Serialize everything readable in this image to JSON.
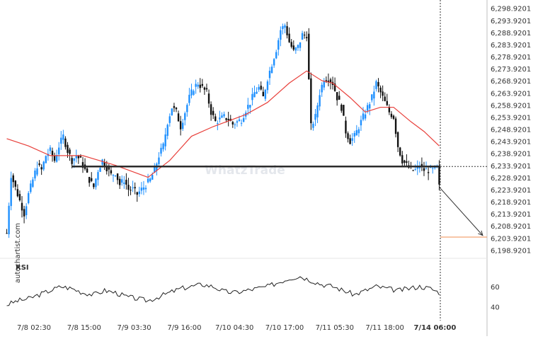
{
  "source_label": "autochartist.com",
  "watermark": "WhatzTrade",
  "chart_data": {
    "type": "candlestick",
    "title": "",
    "price_axis": {
      "ticks": [
        "6,298.9201",
        "6,293.9201",
        "6,288.9201",
        "6,283.9201",
        "6,278.9201",
        "6,273.9201",
        "6,268.9201",
        "6,263.9201",
        "6,258.9201",
        "6,253.9201",
        "6,248.9201",
        "6,243.9201",
        "6,238.9201",
        "6,233.9201",
        "6,228.9201",
        "6,223.9201",
        "6,218.9201",
        "6,213.9201",
        "6,208.9201",
        "6,203.9201",
        "6,198.9201"
      ],
      "ylim": [
        6196.4,
        6300.6
      ]
    },
    "time_axis": {
      "ticks": [
        "7/8 02:30",
        "7/8 15:00",
        "7/9 03:30",
        "7/9 16:00",
        "7/10 04:30",
        "7/10 17:00",
        "7/11 05:30",
        "7/11 18:00",
        "7/14 06:00"
      ],
      "highlight_tick": "7/14 06:00",
      "n_bars": 200
    },
    "support_level": 6233.5,
    "target_level": 6204.3,
    "price_series": [
      [
        0,
        6206
      ],
      [
        2,
        6230
      ],
      [
        5,
        6222
      ],
      [
        8,
        6214
      ],
      [
        10,
        6222
      ],
      [
        12,
        6228
      ],
      [
        14,
        6234
      ],
      [
        16,
        6232
      ],
      [
        18,
        6238
      ],
      [
        20,
        6240
      ],
      [
        22,
        6236
      ],
      [
        24,
        6242
      ],
      [
        26,
        6246
      ],
      [
        28,
        6240
      ],
      [
        30,
        6236
      ],
      [
        32,
        6238
      ],
      [
        34,
        6236
      ],
      [
        36,
        6232
      ],
      [
        38,
        6228
      ],
      [
        40,
        6225
      ],
      [
        42,
        6232
      ],
      [
        44,
        6236
      ],
      [
        46,
        6233
      ],
      [
        48,
        6230
      ],
      [
        50,
        6231
      ],
      [
        52,
        6226
      ],
      [
        54,
        6228
      ],
      [
        56,
        6224
      ],
      [
        58,
        6224
      ],
      [
        60,
        6222
      ],
      [
        62,
        6224
      ],
      [
        64,
        6226
      ],
      [
        66,
        6228
      ],
      [
        68,
        6232
      ],
      [
        70,
        6238
      ],
      [
        72,
        6242
      ],
      [
        74,
        6252
      ],
      [
        76,
        6258
      ],
      [
        78,
        6256
      ],
      [
        80,
        6250
      ],
      [
        82,
        6256
      ],
      [
        84,
        6262
      ],
      [
        86,
        6266
      ],
      [
        88,
        6268
      ],
      [
        90,
        6266
      ],
      [
        92,
        6264
      ],
      [
        94,
        6256
      ],
      [
        96,
        6252
      ],
      [
        98,
        6253
      ],
      [
        100,
        6254
      ],
      [
        102,
        6253
      ],
      [
        104,
        6251
      ],
      [
        106,
        6252
      ],
      [
        108,
        6253
      ],
      [
        110,
        6257
      ],
      [
        112,
        6260
      ],
      [
        114,
        6264
      ],
      [
        116,
        6266
      ],
      [
        118,
        6262
      ],
      [
        120,
        6270
      ],
      [
        122,
        6276
      ],
      [
        124,
        6282
      ],
      [
        126,
        6290
      ],
      [
        128,
        6292
      ],
      [
        130,
        6285
      ],
      [
        132,
        6281
      ],
      [
        134,
        6283
      ],
      [
        136,
        6288
      ],
      [
        138,
        6288
      ],
      [
        140,
        6250
      ],
      [
        142,
        6254
      ],
      [
        144,
        6264
      ],
      [
        146,
        6270
      ],
      [
        148,
        6270
      ],
      [
        150,
        6268
      ],
      [
        152,
        6262
      ],
      [
        154,
        6258
      ],
      [
        156,
        6248
      ],
      [
        158,
        6244
      ],
      [
        160,
        6246
      ],
      [
        162,
        6250
      ],
      [
        164,
        6254
      ],
      [
        166,
        6258
      ],
      [
        168,
        6262
      ],
      [
        170,
        6268
      ],
      [
        172,
        6264
      ],
      [
        174,
        6260
      ],
      [
        176,
        6256
      ],
      [
        178,
        6254
      ],
      [
        180,
        6242
      ],
      [
        182,
        6236
      ],
      [
        184,
        6234
      ],
      [
        186,
        6232
      ],
      [
        188,
        6232
      ],
      [
        190,
        6234
      ],
      [
        192,
        6232
      ],
      [
        194,
        6232
      ],
      [
        196,
        6232
      ],
      [
        198,
        6233
      ],
      [
        199,
        6225
      ]
    ],
    "moving_average": [
      [
        0,
        6245
      ],
      [
        10,
        6242
      ],
      [
        20,
        6238
      ],
      [
        35,
        6238
      ],
      [
        50,
        6234
      ],
      [
        65,
        6229
      ],
      [
        75,
        6236
      ],
      [
        85,
        6246
      ],
      [
        95,
        6250
      ],
      [
        110,
        6255
      ],
      [
        120,
        6260
      ],
      [
        130,
        6268
      ],
      [
        138,
        6273
      ],
      [
        145,
        6269
      ],
      [
        150,
        6268
      ],
      [
        158,
        6262
      ],
      [
        165,
        6256
      ],
      [
        172,
        6258
      ],
      [
        178,
        6258
      ],
      [
        186,
        6252
      ],
      [
        192,
        6248
      ],
      [
        199,
        6242
      ]
    ],
    "rsi": {
      "label": "RSI",
      "ticks": [
        60,
        40
      ],
      "ylim": [
        30,
        80
      ],
      "values": [
        [
          0,
          42
        ],
        [
          5,
          46
        ],
        [
          10,
          48
        ],
        [
          15,
          52
        ],
        [
          20,
          56
        ],
        [
          25,
          60
        ],
        [
          30,
          58
        ],
        [
          35,
          54
        ],
        [
          40,
          52
        ],
        [
          45,
          56
        ],
        [
          50,
          54
        ],
        [
          55,
          50
        ],
        [
          60,
          48
        ],
        [
          65,
          46
        ],
        [
          70,
          50
        ],
        [
          75,
          54
        ],
        [
          80,
          58
        ],
        [
          85,
          60
        ],
        [
          90,
          62
        ],
        [
          95,
          60
        ],
        [
          100,
          55
        ],
        [
          105,
          54
        ],
        [
          110,
          56
        ],
        [
          115,
          58
        ],
        [
          120,
          60
        ],
        [
          125,
          64
        ],
        [
          130,
          68
        ],
        [
          135,
          70
        ],
        [
          140,
          66
        ],
        [
          145,
          62
        ],
        [
          150,
          60
        ],
        [
          155,
          56
        ],
        [
          160,
          52
        ],
        [
          165,
          56
        ],
        [
          170,
          60
        ],
        [
          175,
          58
        ],
        [
          180,
          56
        ],
        [
          185,
          58
        ],
        [
          190,
          60
        ],
        [
          195,
          58
        ],
        [
          199,
          54
        ]
      ]
    },
    "projection": {
      "from_bar": 199,
      "from_price": 6225,
      "to_bar": 219,
      "to_price": 6205
    }
  }
}
